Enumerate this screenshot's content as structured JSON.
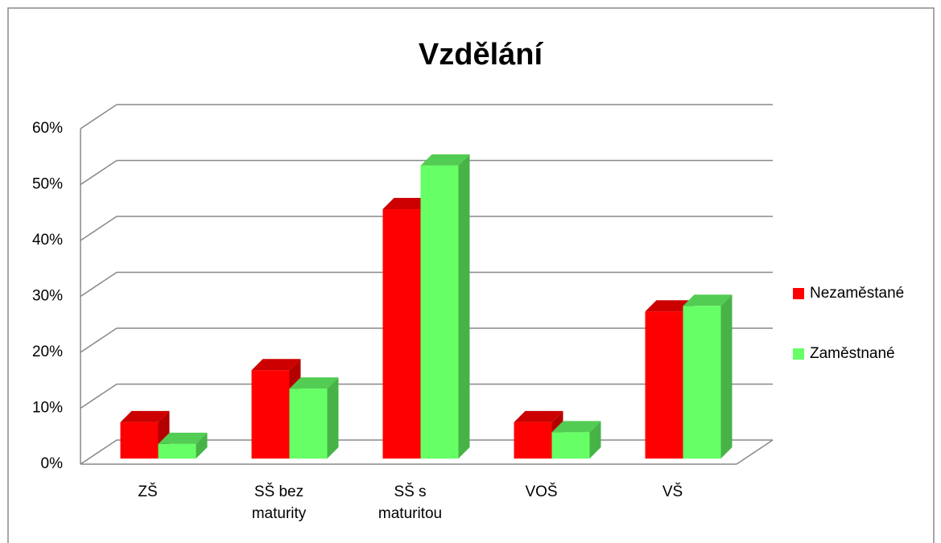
{
  "chart_data": {
    "type": "bar3d",
    "title": "Vzdělání",
    "categories": [
      "ZŠ",
      "SŠ bez maturity",
      "SŠ s maturitou",
      "VOŠ",
      "VŠ"
    ],
    "series": [
      {
        "name": "Nezaměstané",
        "color": "#ff0000",
        "values": [
          6.5,
          15.8,
          44.6,
          6.5,
          26.3
        ]
      },
      {
        "name": "Zaměstnané",
        "color": "#66ff66",
        "values": [
          2.6,
          12.5,
          52.4,
          4.7,
          27.3
        ]
      }
    ],
    "ylim": [
      0,
      60
    ],
    "yticks": [
      {
        "value": 0,
        "label": "0%"
      },
      {
        "value": 10,
        "label": "10%"
      },
      {
        "value": 20,
        "label": "20%"
      },
      {
        "value": 30,
        "label": "30%"
      },
      {
        "value": 40,
        "label": "40%"
      },
      {
        "value": 50,
        "label": "50%"
      },
      {
        "value": 60,
        "label": "60%"
      }
    ],
    "grid": true,
    "legend": "right"
  }
}
